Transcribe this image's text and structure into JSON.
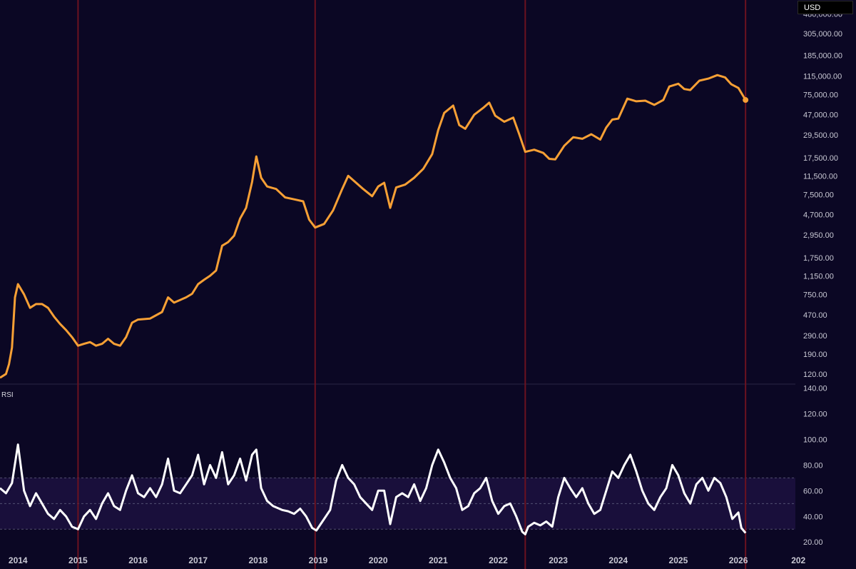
{
  "colors": {
    "background": "#0b0724",
    "price_line": "#f7a035",
    "rsi_line": "#ffffff",
    "cycle_line": "#6b1220",
    "rsi_band": "#1c1040",
    "band_border": "#6e6e8a"
  },
  "currency_label": "USD",
  "chart_data": [
    {
      "type": "line",
      "scale": "log",
      "x_axis": {
        "tick_labels": [
          "2014",
          "2015",
          "2016",
          "2017",
          "2018",
          "2019",
          "2020",
          "2021",
          "2022",
          "2023",
          "2024",
          "2025",
          "2026",
          "202"
        ]
      },
      "y_axis": {
        "tick_labels": [
          "480,000.00",
          "305,000.00",
          "185,000.00",
          "115,000.00",
          "75,000.00",
          "47,000.00",
          "29,500.00",
          "17,500.00",
          "11,500.00",
          "7,500.00",
          "4,700.00",
          "2,950.00",
          "1,750.00",
          "1,150.00",
          "750.00",
          "470.00",
          "290.00",
          "190.00",
          "120.00"
        ],
        "tick_values": [
          480000,
          305000,
          185000,
          115000,
          75000,
          47000,
          29500,
          17500,
          11500,
          7500,
          4700,
          2950,
          1750,
          1150,
          750,
          470,
          290,
          190,
          120
        ]
      },
      "ylim": [
        95,
        560000
      ],
      "vertical_markers": [
        2015.0,
        2018.95,
        2022.45,
        2026.12
      ],
      "series": [
        {
          "values": [
            [
              2013.7,
              110
            ],
            [
              2013.8,
              120
            ],
            [
              2013.85,
              150
            ],
            [
              2013.9,
              220
            ],
            [
              2013.95,
              700
            ],
            [
              2014.0,
              950
            ],
            [
              2014.1,
              750
            ],
            [
              2014.2,
              550
            ],
            [
              2014.3,
              600
            ],
            [
              2014.4,
              600
            ],
            [
              2014.5,
              550
            ],
            [
              2014.6,
              450
            ],
            [
              2014.7,
              380
            ],
            [
              2014.8,
              330
            ],
            [
              2014.9,
              280
            ],
            [
              2015.0,
              230
            ],
            [
              2015.1,
              240
            ],
            [
              2015.2,
              250
            ],
            [
              2015.3,
              230
            ],
            [
              2015.4,
              240
            ],
            [
              2015.5,
              270
            ],
            [
              2015.6,
              240
            ],
            [
              2015.7,
              230
            ],
            [
              2015.8,
              280
            ],
            [
              2015.9,
              390
            ],
            [
              2016.0,
              420
            ],
            [
              2016.2,
              430
            ],
            [
              2016.4,
              500
            ],
            [
              2016.5,
              700
            ],
            [
              2016.6,
              620
            ],
            [
              2016.8,
              700
            ],
            [
              2016.9,
              760
            ],
            [
              2017.0,
              950
            ],
            [
              2017.1,
              1050
            ],
            [
              2017.2,
              1150
            ],
            [
              2017.3,
              1300
            ],
            [
              2017.4,
              2300
            ],
            [
              2017.5,
              2500
            ],
            [
              2017.6,
              2900
            ],
            [
              2017.7,
              4300
            ],
            [
              2017.8,
              5500
            ],
            [
              2017.9,
              10000
            ],
            [
              2017.97,
              18000
            ],
            [
              2018.05,
              11000
            ],
            [
              2018.15,
              9000
            ],
            [
              2018.3,
              8500
            ],
            [
              2018.45,
              7000
            ],
            [
              2018.6,
              6700
            ],
            [
              2018.75,
              6400
            ],
            [
              2018.85,
              4200
            ],
            [
              2018.95,
              3500
            ],
            [
              2019.1,
              3800
            ],
            [
              2019.25,
              5200
            ],
            [
              2019.4,
              8500
            ],
            [
              2019.5,
              11500
            ],
            [
              2019.6,
              10200
            ],
            [
              2019.75,
              8500
            ],
            [
              2019.9,
              7200
            ],
            [
              2020.0,
              9000
            ],
            [
              2020.1,
              9800
            ],
            [
              2020.2,
              5500
            ],
            [
              2020.3,
              8800
            ],
            [
              2020.45,
              9400
            ],
            [
              2020.6,
              11000
            ],
            [
              2020.75,
              13500
            ],
            [
              2020.9,
              19000
            ],
            [
              2021.0,
              33000
            ],
            [
              2021.1,
              49000
            ],
            [
              2021.25,
              58000
            ],
            [
              2021.35,
              37000
            ],
            [
              2021.45,
              34000
            ],
            [
              2021.6,
              47000
            ],
            [
              2021.75,
              55000
            ],
            [
              2021.85,
              62000
            ],
            [
              2021.95,
              46000
            ],
            [
              2022.1,
              40000
            ],
            [
              2022.25,
              44000
            ],
            [
              2022.35,
              30000
            ],
            [
              2022.45,
              20000
            ],
            [
              2022.6,
              21000
            ],
            [
              2022.75,
              19500
            ],
            [
              2022.85,
              17000
            ],
            [
              2022.95,
              16800
            ],
            [
              2023.1,
              23000
            ],
            [
              2023.25,
              28000
            ],
            [
              2023.4,
              27000
            ],
            [
              2023.55,
              30000
            ],
            [
              2023.7,
              26500
            ],
            [
              2023.8,
              35000
            ],
            [
              2023.9,
              42000
            ],
            [
              2024.0,
              43000
            ],
            [
              2024.15,
              68000
            ],
            [
              2024.3,
              64000
            ],
            [
              2024.45,
              65000
            ],
            [
              2024.6,
              59000
            ],
            [
              2024.75,
              66000
            ],
            [
              2024.85,
              90000
            ],
            [
              2025.0,
              96000
            ],
            [
              2025.1,
              85000
            ],
            [
              2025.2,
              83000
            ],
            [
              2025.35,
              103000
            ],
            [
              2025.5,
              108000
            ],
            [
              2025.65,
              117000
            ],
            [
              2025.78,
              111000
            ],
            [
              2025.88,
              95000
            ],
            [
              2026.0,
              87000
            ],
            [
              2026.12,
              66000
            ]
          ]
        }
      ]
    },
    {
      "type": "line",
      "title": "RSI",
      "y_axis": {
        "tick_labels": [
          "140.00",
          "120.00",
          "100.00",
          "80.00",
          "60.00",
          "40.00",
          "20.00"
        ],
        "tick_values": [
          140,
          120,
          100,
          80,
          60,
          40,
          20
        ]
      },
      "ylim": [
        14,
        142
      ],
      "band_levels": [
        30,
        50,
        70
      ],
      "series": [
        {
          "values": [
            [
              2013.7,
              62
            ],
            [
              2013.8,
              58
            ],
            [
              2013.9,
              66
            ],
            [
              2014.0,
              96
            ],
            [
              2014.1,
              60
            ],
            [
              2014.2,
              48
            ],
            [
              2014.3,
              58
            ],
            [
              2014.4,
              50
            ],
            [
              2014.5,
              42
            ],
            [
              2014.6,
              38
            ],
            [
              2014.7,
              45
            ],
            [
              2014.8,
              40
            ],
            [
              2014.9,
              32
            ],
            [
              2015.0,
              30
            ],
            [
              2015.1,
              40
            ],
            [
              2015.2,
              45
            ],
            [
              2015.3,
              38
            ],
            [
              2015.4,
              50
            ],
            [
              2015.5,
              58
            ],
            [
              2015.6,
              48
            ],
            [
              2015.7,
              45
            ],
            [
              2015.8,
              60
            ],
            [
              2015.9,
              72
            ],
            [
              2016.0,
              58
            ],
            [
              2016.1,
              55
            ],
            [
              2016.2,
              62
            ],
            [
              2016.3,
              55
            ],
            [
              2016.4,
              65
            ],
            [
              2016.5,
              85
            ],
            [
              2016.6,
              60
            ],
            [
              2016.7,
              58
            ],
            [
              2016.8,
              65
            ],
            [
              2016.9,
              72
            ],
            [
              2017.0,
              88
            ],
            [
              2017.1,
              65
            ],
            [
              2017.2,
              80
            ],
            [
              2017.3,
              70
            ],
            [
              2017.4,
              90
            ],
            [
              2017.5,
              65
            ],
            [
              2017.6,
              72
            ],
            [
              2017.7,
              85
            ],
            [
              2017.8,
              68
            ],
            [
              2017.9,
              88
            ],
            [
              2017.97,
              92
            ],
            [
              2018.05,
              62
            ],
            [
              2018.15,
              52
            ],
            [
              2018.25,
              48
            ],
            [
              2018.4,
              45
            ],
            [
              2018.5,
              44
            ],
            [
              2018.6,
              42
            ],
            [
              2018.7,
              46
            ],
            [
              2018.8,
              40
            ],
            [
              2018.9,
              31
            ],
            [
              2018.97,
              29
            ],
            [
              2019.1,
              38
            ],
            [
              2019.2,
              45
            ],
            [
              2019.3,
              68
            ],
            [
              2019.4,
              80
            ],
            [
              2019.5,
              70
            ],
            [
              2019.6,
              65
            ],
            [
              2019.7,
              55
            ],
            [
              2019.8,
              50
            ],
            [
              2019.9,
              45
            ],
            [
              2020.0,
              60
            ],
            [
              2020.1,
              60
            ],
            [
              2020.2,
              34
            ],
            [
              2020.3,
              55
            ],
            [
              2020.4,
              58
            ],
            [
              2020.5,
              55
            ],
            [
              2020.6,
              65
            ],
            [
              2020.7,
              52
            ],
            [
              2020.8,
              62
            ],
            [
              2020.9,
              80
            ],
            [
              2021.0,
              92
            ],
            [
              2021.1,
              82
            ],
            [
              2021.2,
              70
            ],
            [
              2021.3,
              62
            ],
            [
              2021.4,
              45
            ],
            [
              2021.5,
              48
            ],
            [
              2021.6,
              58
            ],
            [
              2021.7,
              62
            ],
            [
              2021.8,
              70
            ],
            [
              2021.9,
              52
            ],
            [
              2022.0,
              42
            ],
            [
              2022.1,
              48
            ],
            [
              2022.2,
              50
            ],
            [
              2022.3,
              40
            ],
            [
              2022.4,
              28
            ],
            [
              2022.45,
              26
            ],
            [
              2022.5,
              32
            ],
            [
              2022.6,
              35
            ],
            [
              2022.7,
              33
            ],
            [
              2022.8,
              36
            ],
            [
              2022.9,
              32
            ],
            [
              2023.0,
              55
            ],
            [
              2023.1,
              70
            ],
            [
              2023.2,
              62
            ],
            [
              2023.3,
              55
            ],
            [
              2023.4,
              62
            ],
            [
              2023.5,
              50
            ],
            [
              2023.6,
              42
            ],
            [
              2023.7,
              45
            ],
            [
              2023.8,
              60
            ],
            [
              2023.9,
              75
            ],
            [
              2024.0,
              70
            ],
            [
              2024.1,
              80
            ],
            [
              2024.2,
              88
            ],
            [
              2024.3,
              75
            ],
            [
              2024.4,
              60
            ],
            [
              2024.5,
              50
            ],
            [
              2024.6,
              45
            ],
            [
              2024.7,
              55
            ],
            [
              2024.8,
              62
            ],
            [
              2024.9,
              80
            ],
            [
              2025.0,
              72
            ],
            [
              2025.1,
              58
            ],
            [
              2025.2,
              50
            ],
            [
              2025.3,
              65
            ],
            [
              2025.4,
              70
            ],
            [
              2025.5,
              60
            ],
            [
              2025.6,
              70
            ],
            [
              2025.7,
              66
            ],
            [
              2025.8,
              55
            ],
            [
              2025.9,
              38
            ],
            [
              2026.0,
              43
            ],
            [
              2026.05,
              31
            ],
            [
              2026.12,
              27
            ]
          ]
        }
      ]
    }
  ]
}
